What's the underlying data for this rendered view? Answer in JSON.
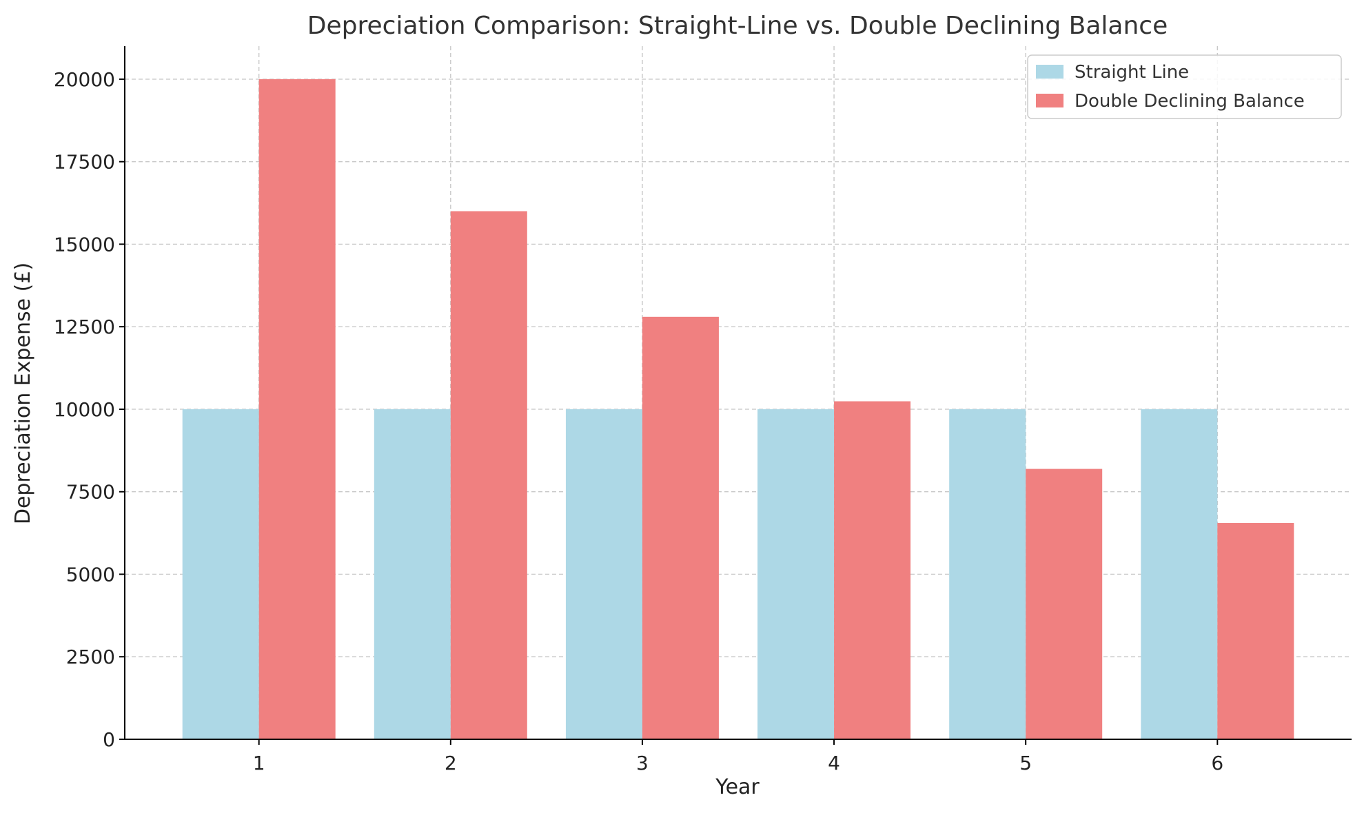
{
  "chart_data": {
    "type": "bar",
    "title": "Depreciation Comparison: Straight-Line vs. Double Declining Balance",
    "xlabel": "Year",
    "ylabel": "Depreciation Expense (£)",
    "categories": [
      "1",
      "2",
      "3",
      "4",
      "5",
      "6"
    ],
    "series": [
      {
        "name": "Straight Line",
        "color": "#add8e6",
        "values": [
          10000,
          10000,
          10000,
          10000,
          10000,
          10000
        ]
      },
      {
        "name": "Double Declining Balance",
        "color": "#f08080",
        "values": [
          20000,
          16000,
          12800,
          10240,
          8192,
          6554
        ]
      }
    ],
    "ylim": [
      0,
      21000
    ],
    "yticks": [
      0,
      2500,
      5000,
      7500,
      10000,
      12500,
      15000,
      17500,
      20000
    ],
    "grid": true,
    "legend_position": "top-right"
  }
}
